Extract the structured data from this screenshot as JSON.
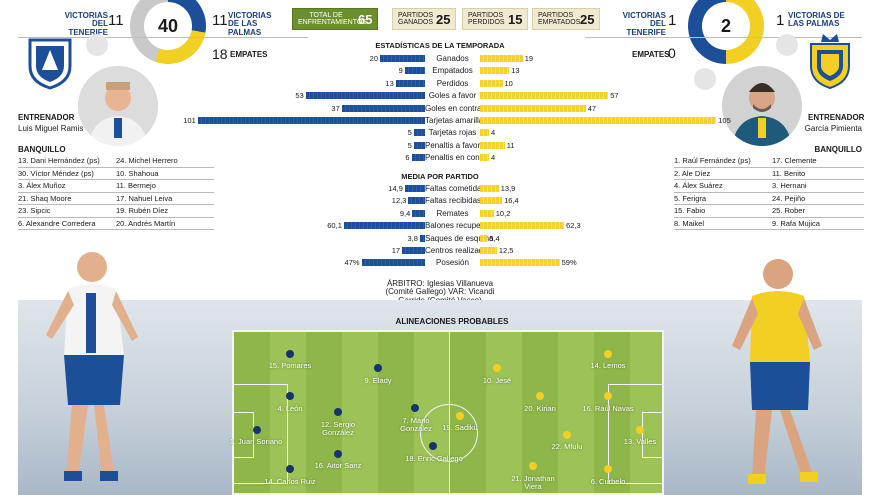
{
  "colors": {
    "tenerife": "#1d4f99",
    "laspalmas": "#f2cf23",
    "green": "#6c8f2e"
  },
  "head": {
    "tenerife_wins_label": "VICTORIAS DEL TENERIFE",
    "tenerife_wins": "11",
    "total_center": "40",
    "palmas_wins_label": "VICTORIAS DE LAS PALMAS",
    "palmas_wins": "11",
    "draws_left": "18",
    "draws_left_label": "EMPATES",
    "pills": [
      {
        "label": "TOTAL DE ENFRENTAMIENTOS",
        "value": "65"
      },
      {
        "label": "PARTIDOS GANADOS",
        "value": "25"
      },
      {
        "label": "PARTIDOS PERDIDOS",
        "value": "15"
      },
      {
        "label": "PARTIDOS EMPATADOS",
        "value": "25"
      }
    ],
    "right_tenerife_label": "VICTORIAS DEL TENERIFE",
    "right_tenerife": "1",
    "right_center": "2",
    "right_palmas_label": "VICTORIAS DE LAS PALMAS",
    "right_palmas": "1",
    "draws_right_label": "EMPATES",
    "draws_right": "0"
  },
  "left_coach": {
    "role": "ENTRENADOR",
    "name": "Luis Miguel Ramis"
  },
  "right_coach": {
    "role": "ENTRENADOR",
    "name": "García Pimienta"
  },
  "left_bench": {
    "title": "BANQUILLO",
    "col1": [
      "13. Dani Hernández (ps)",
      "30. Víctor Méndez (ps)",
      "3. Álex Muñoz",
      "21. Shaq Moore",
      "23. Sipcic",
      "6. Alexandre Corredera"
    ],
    "col2": [
      "24. Michel Herrero",
      "10. Shahoua",
      "11. Bermejo",
      "17. Nahuel Leiva",
      "19. Rubén Díez",
      "20. Andrés Martín"
    ]
  },
  "right_bench": {
    "title": "BANQUILLO",
    "col1": [
      "1. Raúl Fernández (ps)",
      "2. Ale Díez",
      "4. Álex Suárez",
      "5. Ferigra",
      "15. Fabio",
      "8. Maikel"
    ],
    "col2": [
      "17. Clemente",
      "11. Benito",
      "3. Hernani",
      "24. Pejiño",
      "25. Rober",
      "9. Rafa Mujica"
    ]
  },
  "season_title": "ESTADÍSTICAS DE LA TEMPORADA",
  "season_stats": [
    {
      "label": "Ganados",
      "left": "20",
      "right": "19",
      "lv": 20,
      "rv": 19
    },
    {
      "label": "Empatados",
      "left": "9",
      "right": "13",
      "lv": 9,
      "rv": 13
    },
    {
      "label": "Perdidos",
      "left": "13",
      "right": "10",
      "lv": 13,
      "rv": 10
    },
    {
      "label": "Goles a favor",
      "left": "53",
      "right": "57",
      "lv": 53,
      "rv": 57
    },
    {
      "label": "Goles en contra",
      "left": "37",
      "right": "47",
      "lv": 37,
      "rv": 47
    },
    {
      "label": "Tarjetas amarillas",
      "left": "101",
      "right": "105",
      "lv": 101,
      "rv": 105
    },
    {
      "label": "Tarjetas rojas",
      "left": "5",
      "right": "4",
      "lv": 5,
      "rv": 4
    },
    {
      "label": "Penaltis a favor",
      "left": "5",
      "right": "11",
      "lv": 5,
      "rv": 11
    },
    {
      "label": "Penaltis en contra",
      "left": "6",
      "right": "4",
      "lv": 6,
      "rv": 4
    }
  ],
  "avg_title": "MEDIA POR PARTIDO",
  "avg_stats": [
    {
      "label": "Faltas cometidas",
      "left": "14,9",
      "right": "13,9",
      "lv": 14.9,
      "rv": 13.9
    },
    {
      "label": "Faltas recibidas",
      "left": "12,3",
      "right": "16,4",
      "lv": 12.3,
      "rv": 16.4
    },
    {
      "label": "Remates",
      "left": "9,4",
      "right": "10,2",
      "lv": 9.4,
      "rv": 10.2
    },
    {
      "label": "Balones recuperados",
      "left": "60,1",
      "right": "62,3",
      "lv": 60.1,
      "rv": 62.3
    },
    {
      "label": "Saques de esquina",
      "left": "3,8",
      "right": "5,4",
      "lv": 3.8,
      "rv": 5.4
    },
    {
      "label": "Centros realizados",
      "left": "17",
      "right": "12,5",
      "lv": 17,
      "rv": 12.5
    },
    {
      "label": "Posesión",
      "left": "47%",
      "right": "59%",
      "lv": 47,
      "rv": 59
    }
  ],
  "referee": {
    "line1": "ÁRBITRO: Iglesias Villanueva",
    "line2": "(Comité Gallego) VAR: Vicandi",
    "line3": "Garrido (Comité Vasco)"
  },
  "lineups_title": "ALINEACIONES PROBABLES",
  "lineup_tenerife": [
    {
      "name": "15. Pomares"
    },
    {
      "name": "9. Elady"
    },
    {
      "name": "4. León"
    },
    {
      "name": "12. Sergio González"
    },
    {
      "name": "7. Mario González"
    },
    {
      "name": "18. Enric Gallego"
    },
    {
      "name": "1. Juan Soriano"
    },
    {
      "name": "16. Aitor Sanz"
    },
    {
      "name": "14. Carlos Ruiz"
    }
  ],
  "lineup_palmas": [
    {
      "name": "10. Jesé"
    },
    {
      "name": "14. Lemos"
    },
    {
      "name": "20. Kirian"
    },
    {
      "name": "16. Raúl Navas"
    },
    {
      "name": "19. Sadiku"
    },
    {
      "name": "22. Mfulu"
    },
    {
      "name": "13. Valles"
    },
    {
      "name": "21. Jonathan Viera"
    },
    {
      "name": "6. Curbelo"
    }
  ]
}
